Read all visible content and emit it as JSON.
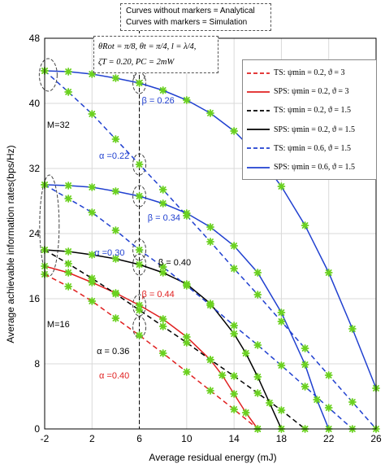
{
  "chart_data": {
    "type": "line",
    "xlabel": "Average residual energy (mJ)",
    "ylabel": "Average achievable information rates(bps/Hz)",
    "xlim": [
      -2,
      26
    ],
    "ylim": [
      0,
      48
    ],
    "xticks": [
      -2,
      2,
      6,
      10,
      14,
      18,
      22,
      26
    ],
    "yticks": [
      0,
      8,
      16,
      24,
      32,
      40,
      48
    ],
    "grid": true,
    "notes": [
      "Curves without markers = Analytical",
      "Curves with markers = Simulation"
    ],
    "params": [
      "θRot = π/8, θt = π/4, l = λ/4,",
      "ζT = 0.20, PC = 2mW"
    ],
    "legend_position": "top-right",
    "series": [
      {
        "name": "TS: ψmin = 0.2, ϑ = 3",
        "color": "#e02020",
        "dash": true,
        "x": [
          -2,
          0,
          2,
          4,
          6,
          8,
          10,
          12,
          14,
          16
        ],
        "y": [
          19,
          17.5,
          15.7,
          13.6,
          11.5,
          9.3,
          7,
          4.7,
          2.4,
          0
        ]
      },
      {
        "name": "SPS: ψmin = 0.2, ϑ = 3",
        "color": "#e02020",
        "dash": false,
        "x": [
          -2,
          0,
          2,
          4,
          6,
          8,
          10,
          12,
          13,
          14,
          15,
          16
        ],
        "y": [
          20,
          19.2,
          18,
          16.7,
          15.2,
          13.5,
          11.3,
          8.5,
          6.6,
          4.3,
          2,
          0
        ]
      },
      {
        "name": "TS: ψmin = 0.2, ϑ = 1.5",
        "color": "#000000",
        "dash": true,
        "x": [
          -2,
          0,
          2,
          4,
          6,
          8,
          10,
          12,
          14,
          16,
          18,
          20
        ],
        "y": [
          22,
          20.3,
          18.5,
          16.6,
          14.6,
          12.6,
          10.6,
          8.5,
          6.5,
          4.4,
          2.3,
          0
        ]
      },
      {
        "name": "SPS: ψmin = 0.2, ϑ = 1.5",
        "color": "#000000",
        "dash": false,
        "x": [
          -2,
          0,
          2,
          4,
          6,
          8,
          10,
          12,
          14,
          15,
          16,
          17,
          18
        ],
        "y": [
          22,
          21.8,
          21.4,
          20.9,
          20.2,
          19.2,
          17.8,
          15.4,
          11.7,
          9.3,
          6.4,
          3.2,
          0
        ]
      },
      {
        "name": "TS: ψmin = 0.6, ϑ = 1.5",
        "color": "#2040d0",
        "dash": true,
        "x": [
          -2,
          0,
          2,
          4,
          6,
          8,
          10,
          12,
          14,
          16,
          18,
          20,
          22,
          24
        ],
        "y": [
          30,
          28.3,
          26.6,
          24.4,
          22,
          19.9,
          17.6,
          15.2,
          12.7,
          10.3,
          7.8,
          5.2,
          2.6,
          0
        ]
      },
      {
        "name": "SPS: ψmin = 0.6, ϑ = 1.5",
        "color": "#2040d0",
        "dash": false,
        "x": [
          -2,
          0,
          2,
          4,
          6,
          8,
          10,
          12,
          14,
          16,
          18,
          20,
          21,
          22
        ],
        "y": [
          30,
          29.9,
          29.7,
          29.2,
          28.6,
          27.7,
          26.5,
          24.8,
          22.5,
          19.2,
          14.3,
          7.9,
          3.6,
          0
        ]
      },
      {
        "name": "TS: ψmin = 0.2, ϑ = 1.5 (M=32)",
        "color": "#2040d0",
        "dash": true,
        "x": [
          -2,
          0,
          2,
          4,
          6,
          8,
          10,
          12,
          14,
          16,
          18,
          20,
          22,
          24,
          26
        ],
        "y": [
          44,
          41.4,
          38.7,
          35.6,
          32.5,
          29.4,
          26.2,
          23,
          19.7,
          16.5,
          13.2,
          9.9,
          6.6,
          3.3,
          0
        ]
      },
      {
        "name": "SPS: ψmin = 0.6, ϑ = 1.5 (M=32)",
        "color": "#2040d0",
        "dash": false,
        "x": [
          -2,
          0,
          2,
          4,
          6,
          8,
          10,
          12,
          14,
          16,
          18,
          20,
          22,
          24,
          26
        ],
        "y": [
          44,
          43.9,
          43.6,
          43.1,
          42.5,
          41.6,
          40.4,
          38.8,
          36.6,
          33.7,
          29.8,
          25,
          19.2,
          12.3,
          5
        ]
      }
    ],
    "annotations": [
      {
        "text": "M=32",
        "x": -1.8,
        "y": 37,
        "color": "#000000"
      },
      {
        "text": "M=16",
        "x": -1.8,
        "y": 12.5,
        "color": "#000000"
      },
      {
        "text": "β = 0.26",
        "x": 6.2,
        "y": 40,
        "color": "#2040d0"
      },
      {
        "text": "α =0.22",
        "x": 2.6,
        "y": 33.2,
        "color": "#2040d0"
      },
      {
        "text": "β = 0.34",
        "x": 6.7,
        "y": 25.6,
        "color": "#2040d0"
      },
      {
        "text": "α =0.30",
        "x": 2.2,
        "y": 21.3,
        "color": "#2040d0"
      },
      {
        "text": "β = 0.40",
        "x": 7.6,
        "y": 20.1,
        "color": "#000000"
      },
      {
        "text": "β = 0.44",
        "x": 6.2,
        "y": 16.2,
        "color": "#e02020"
      },
      {
        "text": "α = 0.36",
        "x": 2.4,
        "y": 9.2,
        "color": "#000000"
      },
      {
        "text": "α =0.40",
        "x": 2.6,
        "y": 6.2,
        "color": "#e02020"
      }
    ]
  }
}
